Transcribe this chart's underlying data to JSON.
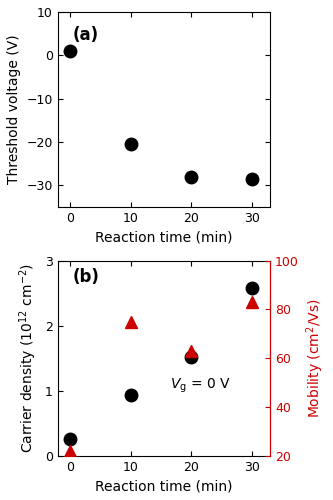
{
  "reaction_time": [
    0,
    10,
    20,
    30
  ],
  "threshold_voltage": [
    1.0,
    -20.5,
    -28.0,
    -28.5
  ],
  "vth_ylim": [
    -35,
    10
  ],
  "vth_yticks": [
    -30,
    -20,
    -10,
    0,
    10
  ],
  "vth_ylabel": "Threshold voltage (V)",
  "vth_xlabel": "Reaction time (min)",
  "vth_label": "(a)",
  "carrier_density": [
    0.25,
    0.93,
    1.52,
    2.58
  ],
  "mobility": [
    22,
    75,
    63,
    83
  ],
  "cd_ylim": [
    0,
    3
  ],
  "cd_yticks": [
    0,
    1,
    2,
    3
  ],
  "mob_ylim": [
    20,
    100
  ],
  "mob_yticks": [
    20,
    40,
    60,
    80,
    100
  ],
  "cd_ylabel": "Carrier density (10$^{12}$ cm$^{-2}$)",
  "mob_ylabel": "Mobility (cm$^2$/Vs)",
  "cd_xlabel": "Reaction time (min)",
  "cd_label": "(b)",
  "xlim": [
    -2,
    33
  ],
  "xticks": [
    0,
    10,
    20,
    30
  ],
  "color_black": "#000000",
  "color_red": "#cc0000",
  "marker_circle": "o",
  "marker_triangle": "^",
  "markersize": 9,
  "background_color": "#ffffff"
}
